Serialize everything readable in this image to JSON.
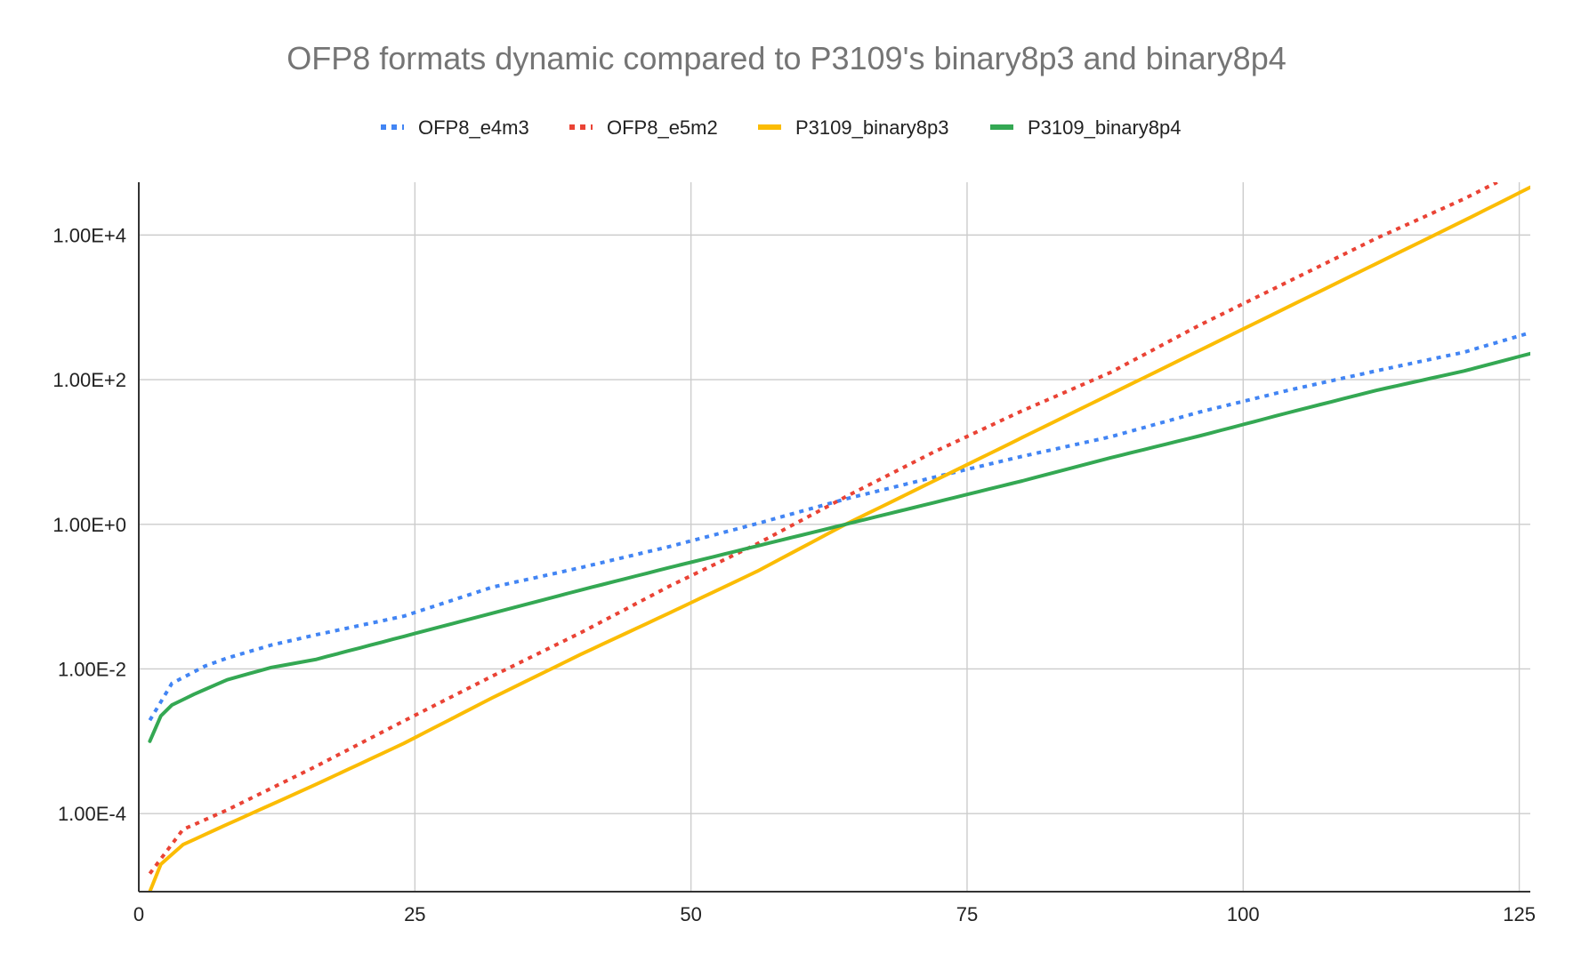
{
  "chart_data": {
    "type": "line",
    "title": "OFP8 formats dynamic compared to P3109's binary8p3 and binary8p4",
    "xlabel": "",
    "ylabel": "",
    "x_scale": "linear",
    "y_scale": "log",
    "xlim": [
      0,
      126
    ],
    "ylim_log10": [
      -5.08,
      4.73
    ],
    "grid": true,
    "legend_position": "top",
    "x_ticks": [
      {
        "value": 0,
        "label": "0"
      },
      {
        "value": 25,
        "label": "25"
      },
      {
        "value": 50,
        "label": "50"
      },
      {
        "value": 75,
        "label": "75"
      },
      {
        "value": 100,
        "label": "100"
      },
      {
        "value": 125,
        "label": "125"
      }
    ],
    "y_ticks": [
      {
        "log10": 4,
        "label": "1.00E+4"
      },
      {
        "log10": 2,
        "label": "1.00E+2"
      },
      {
        "log10": 0,
        "label": "1.00E+0"
      },
      {
        "log10": -2,
        "label": "1.00E-2"
      },
      {
        "log10": -4,
        "label": "1.00E-4"
      }
    ],
    "series": [
      {
        "name": "OFP8_e4m3",
        "color": "#4285f4",
        "style": "dotted",
        "x_from": 1,
        "x_to": 126,
        "points_log10": [
          [
            1,
            -2.71
          ],
          [
            3,
            -2.2
          ],
          [
            6,
            -1.96
          ],
          [
            8,
            -1.85
          ],
          [
            12,
            -1.67
          ],
          [
            16,
            -1.53
          ],
          [
            24,
            -1.27
          ],
          [
            32,
            -0.87
          ],
          [
            40,
            -0.6
          ],
          [
            48,
            -0.31
          ],
          [
            56,
            0.01
          ],
          [
            64,
            0.35
          ],
          [
            72,
            0.65
          ],
          [
            80,
            0.94
          ],
          [
            88,
            1.21
          ],
          [
            96,
            1.55
          ],
          [
            104,
            1.85
          ],
          [
            112,
            2.12
          ],
          [
            120,
            2.38
          ],
          [
            126,
            2.65
          ]
        ]
      },
      {
        "name": "OFP8_e5m2",
        "color": "#ea4335",
        "style": "dotted",
        "x_from": 1,
        "x_to": 123,
        "points_log10": [
          [
            1,
            -4.83
          ],
          [
            4,
            -4.22
          ],
          [
            8,
            -3.95
          ],
          [
            16,
            -3.35
          ],
          [
            24,
            -2.72
          ],
          [
            32,
            -2.1
          ],
          [
            40,
            -1.5
          ],
          [
            48,
            -0.86
          ],
          [
            56,
            -0.27
          ],
          [
            64,
            0.38
          ],
          [
            72,
            1.0
          ],
          [
            80,
            1.57
          ],
          [
            88,
            2.1
          ],
          [
            96,
            2.75
          ],
          [
            104,
            3.35
          ],
          [
            112,
            3.95
          ],
          [
            120,
            4.5
          ],
          [
            123,
            4.73
          ]
        ]
      },
      {
        "name": "P3109_binary8p3",
        "color": "#fbbc04",
        "style": "solid",
        "x_from": 1,
        "x_to": 126,
        "points_log10": [
          [
            1,
            -5.08
          ],
          [
            2,
            -4.7
          ],
          [
            4,
            -4.43
          ],
          [
            8,
            -4.15
          ],
          [
            16,
            -3.6
          ],
          [
            24,
            -3.03
          ],
          [
            32,
            -2.4
          ],
          [
            40,
            -1.8
          ],
          [
            48,
            -1.23
          ],
          [
            56,
            -0.65
          ],
          [
            64,
            0.0
          ],
          [
            72,
            0.6
          ],
          [
            80,
            1.2
          ],
          [
            88,
            1.8
          ],
          [
            96,
            2.4
          ],
          [
            104,
            3.0
          ],
          [
            112,
            3.6
          ],
          [
            120,
            4.2
          ],
          [
            126,
            4.66
          ]
        ]
      },
      {
        "name": "P3109_binary8p4",
        "color": "#34a853",
        "style": "solid",
        "x_from": 1,
        "x_to": 126,
        "points_log10": [
          [
            1,
            -3.0
          ],
          [
            2,
            -2.65
          ],
          [
            3,
            -2.5
          ],
          [
            5,
            -2.35
          ],
          [
            8,
            -2.15
          ],
          [
            12,
            -1.98
          ],
          [
            16,
            -1.87
          ],
          [
            24,
            -1.55
          ],
          [
            32,
            -1.23
          ],
          [
            40,
            -0.91
          ],
          [
            48,
            -0.6
          ],
          [
            56,
            -0.3
          ],
          [
            64,
            0.0
          ],
          [
            72,
            0.3
          ],
          [
            80,
            0.6
          ],
          [
            88,
            0.92
          ],
          [
            96,
            1.22
          ],
          [
            104,
            1.54
          ],
          [
            112,
            1.85
          ],
          [
            120,
            2.12
          ],
          [
            126,
            2.36
          ]
        ]
      }
    ]
  }
}
